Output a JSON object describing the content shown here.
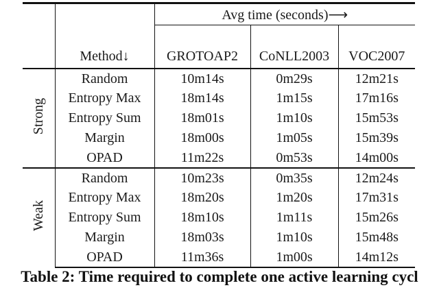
{
  "table": {
    "caption": "Table 2: Time required to complete one active learning cycl",
    "header": {
      "span_label": "Avg time (seconds)⟶",
      "method_label": "Method↓",
      "columns": [
        "GROTOAP2",
        "CoNLL2003",
        "VOC2007"
      ]
    },
    "groups": [
      {
        "label": "Strong",
        "rows": [
          {
            "method": "Random",
            "values": [
              "10m14s",
              "0m29s",
              "12m21s"
            ]
          },
          {
            "method": "Entropy Max",
            "values": [
              "18m14s",
              "1m15s",
              "17m16s"
            ]
          },
          {
            "method": "Entropy Sum",
            "values": [
              "18m01s",
              "1m10s",
              "15m53s"
            ]
          },
          {
            "method": "Margin",
            "values": [
              "18m00s",
              "1m05s",
              "15m39s"
            ]
          },
          {
            "method": "OPAD",
            "values": [
              "11m22s",
              "0m53s",
              "14m00s"
            ]
          }
        ]
      },
      {
        "label": "Weak",
        "rows": [
          {
            "method": "Random",
            "values": [
              "10m23s",
              "0m35s",
              "12m24s"
            ]
          },
          {
            "method": "Entropy Max",
            "values": [
              "18m20s",
              "1m20s",
              "17m31s"
            ]
          },
          {
            "method": "Entropy Sum",
            "values": [
              "18m10s",
              "1m11s",
              "15m26s"
            ]
          },
          {
            "method": "Margin",
            "values": [
              "18m03s",
              "1m10s",
              "15m48s"
            ]
          },
          {
            "method": "OPAD",
            "values": [
              "11m36s",
              "1m00s",
              "14m12s"
            ]
          }
        ]
      }
    ]
  },
  "colors": {
    "text": "#1a1a1a",
    "rule": "#111111",
    "background": "#ffffff"
  }
}
